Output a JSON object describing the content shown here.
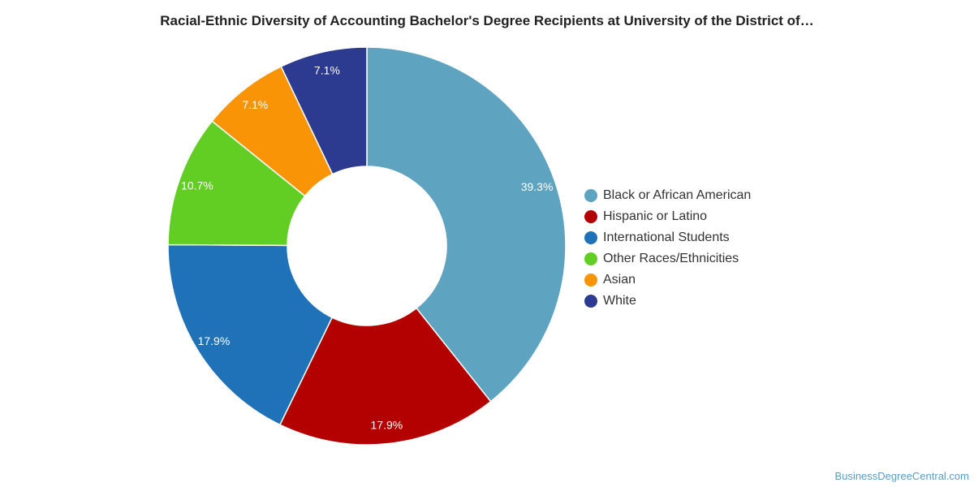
{
  "title": "Racial-Ethnic Diversity of Accounting Bachelor's Degree Recipients at University of the District of…",
  "credit": "BusinessDegreeCentral.com",
  "chart_data": {
    "type": "pie",
    "donut": true,
    "title": "Racial-Ethnic Diversity of Accounting Bachelor's Degree Recipients at University of the District of…",
    "legend_position": "right",
    "categories": [
      "Black or African American",
      "Hispanic or Latino",
      "International Students",
      "Other Races/Ethnicities",
      "Asian",
      "White"
    ],
    "values": [
      39.3,
      17.9,
      17.9,
      10.7,
      7.1,
      7.1
    ],
    "labels": [
      "39.3%",
      "17.9%",
      "17.9%",
      "10.7%",
      "7.1%",
      "7.1%"
    ],
    "colors": [
      "#5ea3bf",
      "#b30000",
      "#1f72b8",
      "#62cd23",
      "#f89406",
      "#2c3a8f"
    ]
  }
}
